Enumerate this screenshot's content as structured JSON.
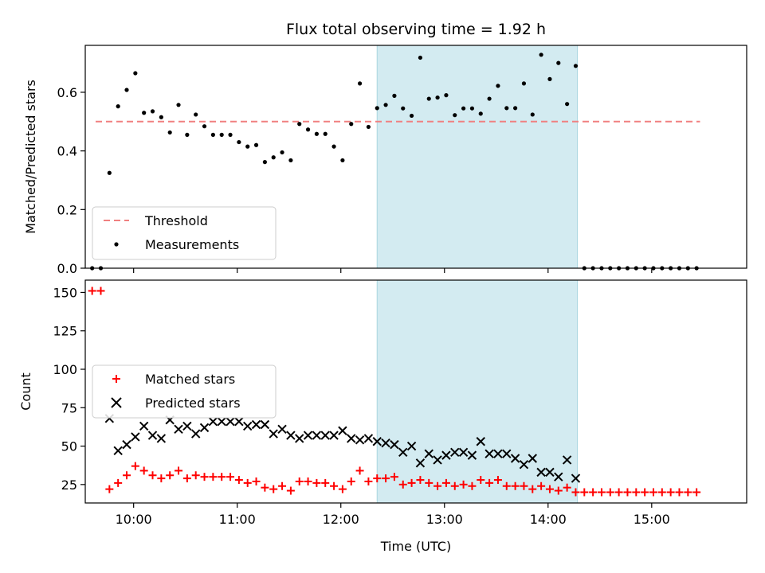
{
  "chart_data": [
    {
      "type": "scatter",
      "title": "Flux total observing time = 1.92 h",
      "xlabel": "",
      "ylabel": "Matched/Predicted stars",
      "ylim": [
        0,
        0.76
      ],
      "xlim": [
        "09:32",
        "15:55"
      ],
      "yticks": [
        "0.0",
        "0.2",
        "0.4",
        "0.6"
      ],
      "shaded_span": [
        "12:21",
        "14:17"
      ],
      "shaded_color": "#d3ebf1",
      "threshold": {
        "name": "Threshold",
        "value": 0.5,
        "x_start": "09:38",
        "x_end": "15:28",
        "color": "#f08080"
      },
      "legend": {
        "location": "lower-left",
        "entries": [
          "Threshold",
          "Measurements"
        ]
      },
      "series": [
        {
          "name": "Measurements",
          "color": "#000000",
          "points": [
            [
              "09:36",
              0.0
            ],
            [
              "09:41",
              0.0
            ],
            [
              "09:46",
              0.325
            ],
            [
              "09:51",
              0.552
            ],
            [
              "09:56",
              0.608
            ],
            [
              "10:01",
              0.665
            ],
            [
              "10:06",
              0.53
            ],
            [
              "10:11",
              0.535
            ],
            [
              "10:16",
              0.515
            ],
            [
              "10:21",
              0.463
            ],
            [
              "10:26",
              0.557
            ],
            [
              "10:31",
              0.455
            ],
            [
              "10:36",
              0.524
            ],
            [
              "10:41",
              0.484
            ],
            [
              "10:46",
              0.455
            ],
            [
              "10:51",
              0.455
            ],
            [
              "10:56",
              0.455
            ],
            [
              "11:01",
              0.43
            ],
            [
              "11:06",
              0.415
            ],
            [
              "11:11",
              0.42
            ],
            [
              "11:16",
              0.362
            ],
            [
              "11:21",
              0.378
            ],
            [
              "11:26",
              0.395
            ],
            [
              "11:31",
              0.368
            ],
            [
              "11:36",
              0.492
            ],
            [
              "11:41",
              0.473
            ],
            [
              "11:46",
              0.458
            ],
            [
              "11:51",
              0.458
            ],
            [
              "11:56",
              0.415
            ],
            [
              "12:01",
              0.368
            ],
            [
              "12:06",
              0.492
            ],
            [
              "12:11",
              0.63
            ],
            [
              "12:16",
              0.482
            ],
            [
              "12:21",
              0.546
            ],
            [
              "12:26",
              0.557
            ],
            [
              "12:31",
              0.588
            ],
            [
              "12:36",
              0.545
            ],
            [
              "12:41",
              0.52
            ],
            [
              "12:46",
              0.718
            ],
            [
              "12:51",
              0.578
            ],
            [
              "12:56",
              0.582
            ],
            [
              "13:01",
              0.59
            ],
            [
              "13:06",
              0.522
            ],
            [
              "13:11",
              0.545
            ],
            [
              "13:16",
              0.545
            ],
            [
              "13:21",
              0.527
            ],
            [
              "13:26",
              0.578
            ],
            [
              "13:31",
              0.622
            ],
            [
              "13:36",
              0.546
            ],
            [
              "13:41",
              0.546
            ],
            [
              "13:46",
              0.63
            ],
            [
              "13:51",
              0.524
            ],
            [
              "13:56",
              0.728
            ],
            [
              "14:01",
              0.645
            ],
            [
              "14:06",
              0.7
            ],
            [
              "14:11",
              0.56
            ],
            [
              "14:16",
              0.69
            ],
            [
              "14:21",
              0.0
            ],
            [
              "14:26",
              0.0
            ],
            [
              "14:31",
              0.0
            ],
            [
              "14:36",
              0.0
            ],
            [
              "14:41",
              0.0
            ],
            [
              "14:46",
              0.0
            ],
            [
              "14:51",
              0.0
            ],
            [
              "14:56",
              0.0
            ],
            [
              "15:01",
              0.0
            ],
            [
              "15:06",
              0.0
            ],
            [
              "15:11",
              0.0
            ],
            [
              "15:16",
              0.0
            ],
            [
              "15:21",
              0.0
            ],
            [
              "15:26",
              0.0
            ]
          ]
        }
      ]
    },
    {
      "type": "scatter",
      "title": "",
      "xlabel": "Time (UTC)",
      "ylabel": "Count",
      "ylim": [
        13,
        158
      ],
      "xlim": [
        "09:32",
        "15:55"
      ],
      "yticks": [
        "25",
        "50",
        "75",
        "100",
        "125",
        "150"
      ],
      "xticks": [
        "10:00",
        "11:00",
        "12:00",
        "13:00",
        "14:00",
        "15:00"
      ],
      "shaded_span": [
        "12:21",
        "14:17"
      ],
      "shaded_color": "#d3ebf1",
      "legend": {
        "location": "center-left",
        "entries": [
          "Matched stars",
          "Predicted stars"
        ]
      },
      "series": [
        {
          "name": "Matched stars",
          "marker": "+",
          "color": "#ff0000",
          "points": [
            [
              "09:36",
              151
            ],
            [
              "09:41",
              151
            ],
            [
              "09:46",
              22
            ],
            [
              "09:51",
              26
            ],
            [
              "09:56",
              31
            ],
            [
              "10:01",
              37
            ],
            [
              "10:06",
              34
            ],
            [
              "10:11",
              31
            ],
            [
              "10:16",
              29
            ],
            [
              "10:21",
              31
            ],
            [
              "10:26",
              34
            ],
            [
              "10:31",
              29
            ],
            [
              "10:36",
              31
            ],
            [
              "10:41",
              30
            ],
            [
              "10:46",
              30
            ],
            [
              "10:51",
              30
            ],
            [
              "10:56",
              30
            ],
            [
              "11:01",
              28
            ],
            [
              "11:06",
              26
            ],
            [
              "11:11",
              27
            ],
            [
              "11:16",
              23
            ],
            [
              "11:21",
              22
            ],
            [
              "11:26",
              24
            ],
            [
              "11:31",
              21
            ],
            [
              "11:36",
              27
            ],
            [
              "11:41",
              27
            ],
            [
              "11:46",
              26
            ],
            [
              "11:51",
              26
            ],
            [
              "11:56",
              24
            ],
            [
              "12:01",
              22
            ],
            [
              "12:06",
              27
            ],
            [
              "12:11",
              34
            ],
            [
              "12:16",
              27
            ],
            [
              "12:21",
              29
            ],
            [
              "12:26",
              29
            ],
            [
              "12:31",
              30
            ],
            [
              "12:36",
              25
            ],
            [
              "12:41",
              26
            ],
            [
              "12:46",
              28
            ],
            [
              "12:51",
              26
            ],
            [
              "12:56",
              24
            ],
            [
              "13:01",
              26
            ],
            [
              "13:06",
              24
            ],
            [
              "13:11",
              25
            ],
            [
              "13:16",
              24
            ],
            [
              "13:21",
              28
            ],
            [
              "13:26",
              26
            ],
            [
              "13:31",
              28
            ],
            [
              "13:36",
              24
            ],
            [
              "13:41",
              24
            ],
            [
              "13:46",
              24
            ],
            [
              "13:51",
              22
            ],
            [
              "13:56",
              24
            ],
            [
              "14:01",
              22
            ],
            [
              "14:06",
              21
            ],
            [
              "14:11",
              23
            ],
            [
              "14:16",
              20
            ],
            [
              "14:21",
              20
            ],
            [
              "14:26",
              20
            ],
            [
              "14:31",
              20
            ],
            [
              "14:36",
              20
            ],
            [
              "14:41",
              20
            ],
            [
              "14:46",
              20
            ],
            [
              "14:51",
              20
            ],
            [
              "14:56",
              20
            ],
            [
              "15:01",
              20
            ],
            [
              "15:06",
              20
            ],
            [
              "15:11",
              20
            ],
            [
              "15:16",
              20
            ],
            [
              "15:21",
              20
            ],
            [
              "15:26",
              20
            ]
          ]
        },
        {
          "name": "Predicted stars",
          "marker": "x",
          "color": "#000000",
          "points": [
            [
              "09:46",
              68
            ],
            [
              "09:51",
              47
            ],
            [
              "09:56",
              51
            ],
            [
              "10:01",
              56
            ],
            [
              "10:06",
              63
            ],
            [
              "10:11",
              57
            ],
            [
              "10:16",
              55
            ],
            [
              "10:21",
              67
            ],
            [
              "10:26",
              61
            ],
            [
              "10:31",
              63
            ],
            [
              "10:36",
              58
            ],
            [
              "10:41",
              62
            ],
            [
              "10:46",
              66
            ],
            [
              "10:51",
              66
            ],
            [
              "10:56",
              66
            ],
            [
              "11:01",
              66
            ],
            [
              "11:06",
              63
            ],
            [
              "11:11",
              64
            ],
            [
              "11:16",
              64
            ],
            [
              "11:21",
              58
            ],
            [
              "11:26",
              61
            ],
            [
              "11:31",
              57
            ],
            [
              "11:36",
              55
            ],
            [
              "11:41",
              57
            ],
            [
              "11:46",
              57
            ],
            [
              "11:51",
              57
            ],
            [
              "11:56",
              57
            ],
            [
              "12:01",
              60
            ],
            [
              "12:06",
              55
            ],
            [
              "12:11",
              54
            ],
            [
              "12:16",
              55
            ],
            [
              "12:21",
              53
            ],
            [
              "12:26",
              52
            ],
            [
              "12:31",
              51
            ],
            [
              "12:36",
              46
            ],
            [
              "12:41",
              50
            ],
            [
              "12:46",
              39
            ],
            [
              "12:51",
              45
            ],
            [
              "12:56",
              41
            ],
            [
              "13:01",
              44
            ],
            [
              "13:06",
              46
            ],
            [
              "13:11",
              46
            ],
            [
              "13:16",
              44
            ],
            [
              "13:21",
              53
            ],
            [
              "13:26",
              45
            ],
            [
              "13:31",
              45
            ],
            [
              "13:36",
              45
            ],
            [
              "13:41",
              42
            ],
            [
              "13:46",
              38
            ],
            [
              "13:51",
              42
            ],
            [
              "13:56",
              33
            ],
            [
              "14:01",
              33
            ],
            [
              "14:06",
              30
            ],
            [
              "14:11",
              41
            ],
            [
              "14:16",
              29
            ]
          ]
        }
      ]
    }
  ]
}
